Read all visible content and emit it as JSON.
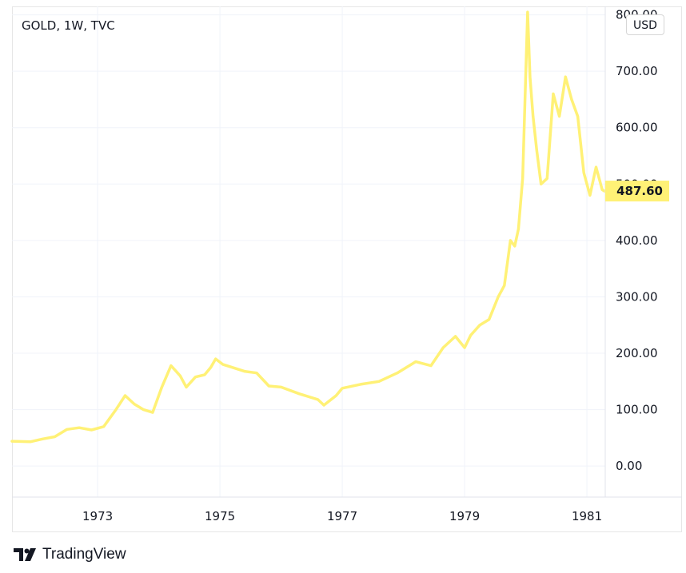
{
  "header": {
    "symbol_label": "GOLD, 1W, TVC"
  },
  "currency_badge": "USD",
  "last_price_label": "487.60",
  "footer": {
    "brand_name": "TradingView"
  },
  "colors": {
    "line": "#fff176",
    "price_tag": "#fff176",
    "grid": "#f0f3fa"
  },
  "icons": {
    "brand": "tradingview-logo-icon"
  },
  "chart_data": {
    "type": "line",
    "title": "GOLD, 1W, TVC",
    "xlabel": "",
    "ylabel": "",
    "xlim": [
      1971.6,
      1981.3
    ],
    "ylim": [
      -55,
      815
    ],
    "grid": true,
    "x_ticks": [
      "1973",
      "1975",
      "1977",
      "1979",
      "1981"
    ],
    "y_ticks": [
      "0.00",
      "100.00",
      "200.00",
      "300.00",
      "400.00",
      "500.00",
      "600.00",
      "700.00",
      "800.00"
    ],
    "last_value": 487.6,
    "series": [
      {
        "name": "",
        "x": [
          1971.6,
          1971.9,
          1972.1,
          1972.3,
          1972.5,
          1972.7,
          1972.9,
          1973.1,
          1973.3,
          1973.45,
          1973.6,
          1973.75,
          1973.9,
          1974.05,
          1974.2,
          1974.35,
          1974.45,
          1974.6,
          1974.75,
          1974.85,
          1974.93,
          1975.05,
          1975.2,
          1975.4,
          1975.6,
          1975.8,
          1976.0,
          1976.3,
          1976.6,
          1976.7,
          1976.9,
          1977.0,
          1977.3,
          1977.6,
          1977.9,
          1978.2,
          1978.45,
          1978.65,
          1978.85,
          1979.0,
          1979.1,
          1979.25,
          1979.4,
          1979.55,
          1979.65,
          1979.75,
          1979.82,
          1979.88,
          1979.95,
          1980.03,
          1980.07,
          1980.12,
          1980.18,
          1980.25,
          1980.35,
          1980.45,
          1980.55,
          1980.65,
          1980.75,
          1980.85,
          1980.95,
          1981.05,
          1981.15,
          1981.25,
          1981.3
        ],
        "values": [
          44,
          43,
          48,
          52,
          65,
          68,
          64,
          70,
          100,
          125,
          110,
          100,
          95,
          140,
          178,
          160,
          140,
          158,
          162,
          175,
          190,
          180,
          175,
          168,
          165,
          142,
          140,
          128,
          118,
          108,
          125,
          138,
          145,
          150,
          165,
          185,
          178,
          210,
          230,
          210,
          232,
          250,
          260,
          300,
          320,
          400,
          390,
          420,
          510,
          805,
          690,
          620,
          560,
          500,
          510,
          660,
          620,
          690,
          650,
          620,
          520,
          480,
          530,
          490,
          487.6
        ]
      }
    ]
  }
}
